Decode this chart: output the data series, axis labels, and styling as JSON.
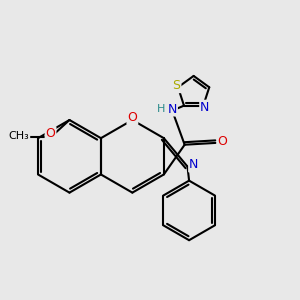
{
  "bg_color": "#e8e8e8",
  "bond_color": "#000000",
  "atom_colors": {
    "N": "#0000cd",
    "O": "#dd0000",
    "S": "#aaaa00",
    "H": "#2a8a8a",
    "C": "#000000"
  },
  "lw": 1.5,
  "fs": 9.0,
  "fs_small": 8.0
}
